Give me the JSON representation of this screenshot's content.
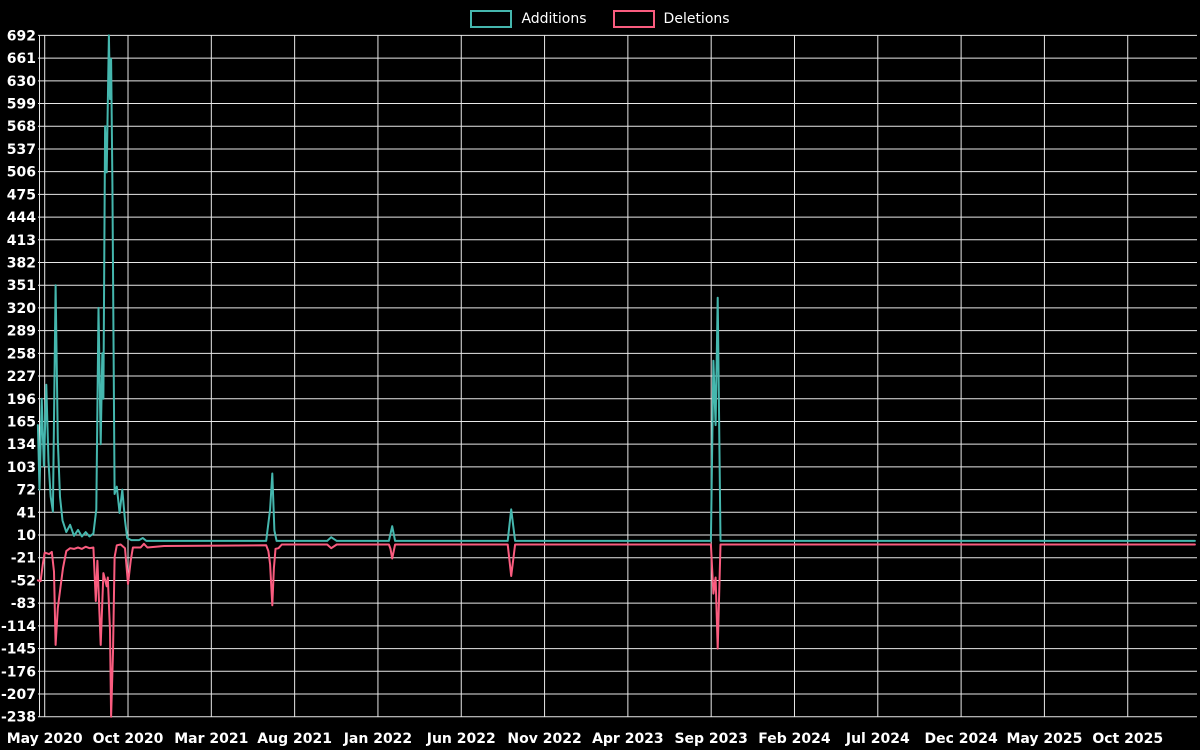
{
  "legend": {
    "items": [
      {
        "label": "Additions",
        "color": "#45b7ae"
      },
      {
        "label": "Deletions",
        "color": "#fa5c7f"
      }
    ]
  },
  "chart_data": {
    "type": "line",
    "title": "",
    "xlabel": "",
    "ylabel": "",
    "grid": true,
    "legend_position": "top-center",
    "ylim": [
      -238,
      692
    ],
    "y_ticks": [
      692,
      661,
      630,
      599,
      568,
      537,
      506,
      475,
      444,
      413,
      382,
      351,
      320,
      289,
      258,
      227,
      196,
      165,
      134,
      103,
      72,
      41,
      10,
      -21,
      -52,
      -83,
      -114,
      -145,
      -176,
      -207,
      -238
    ],
    "x_ticks": [
      "May 2020",
      "Oct 2020",
      "Mar 2021",
      "Aug 2021",
      "Jan 2022",
      "Jun 2022",
      "Nov 2022",
      "Apr 2023",
      "Sep 2023",
      "Feb 2024",
      "Jul 2024",
      "Dec 2024",
      "May 2025",
      "Oct 2025"
    ],
    "colors": {
      "background": "#000000",
      "gridline": "#e8e8e8",
      "text": "#ffffff",
      "additions": "#45b7ae",
      "deletions": "#fa5c7f"
    },
    "series": [
      {
        "name": "Additions",
        "color_key": "additions",
        "points": [
          [
            "2020-04-19",
            160
          ],
          [
            "2020-04-22",
            72
          ],
          [
            "2020-04-26",
            196
          ],
          [
            "2020-04-30",
            104
          ],
          [
            "2020-05-04",
            215
          ],
          [
            "2020-05-08",
            110
          ],
          [
            "2020-05-12",
            62
          ],
          [
            "2020-05-16",
            42
          ],
          [
            "2020-05-21",
            351
          ],
          [
            "2020-05-25",
            140
          ],
          [
            "2020-05-29",
            62
          ],
          [
            "2020-06-03",
            30
          ],
          [
            "2020-06-10",
            14
          ],
          [
            "2020-06-17",
            24
          ],
          [
            "2020-06-24",
            9
          ],
          [
            "2020-07-01",
            17
          ],
          [
            "2020-07-08",
            8
          ],
          [
            "2020-07-15",
            14
          ],
          [
            "2020-07-22",
            8
          ],
          [
            "2020-07-29",
            12
          ],
          [
            "2020-08-04",
            45
          ],
          [
            "2020-08-08",
            320
          ],
          [
            "2020-08-12",
            134
          ],
          [
            "2020-08-15",
            258
          ],
          [
            "2020-08-17",
            196
          ],
          [
            "2020-08-20",
            568
          ],
          [
            "2020-08-23",
            505
          ],
          [
            "2020-08-27",
            692
          ],
          [
            "2020-08-29",
            605
          ],
          [
            "2020-08-31",
            660
          ],
          [
            "2020-09-03",
            490
          ],
          [
            "2020-09-07",
            66
          ],
          [
            "2020-09-11",
            76
          ],
          [
            "2020-09-16",
            40
          ],
          [
            "2020-09-21",
            72
          ],
          [
            "2020-09-26",
            30
          ],
          [
            "2020-09-30",
            6
          ],
          [
            "2020-10-07",
            3
          ],
          [
            "2020-10-21",
            3
          ],
          [
            "2020-10-28",
            6
          ],
          [
            "2020-11-04",
            2
          ],
          [
            "2020-12-06",
            2
          ],
          [
            "2021-06-10",
            2
          ],
          [
            "2021-06-17",
            45
          ],
          [
            "2021-06-21",
            94
          ],
          [
            "2021-06-25",
            16
          ],
          [
            "2021-06-29",
            2
          ],
          [
            "2021-09-30",
            2
          ],
          [
            "2021-10-07",
            7
          ],
          [
            "2021-10-17",
            2
          ],
          [
            "2022-01-21",
            2
          ],
          [
            "2022-01-27",
            22
          ],
          [
            "2022-02-02",
            2
          ],
          [
            "2022-08-25",
            2
          ],
          [
            "2022-09-01",
            45
          ],
          [
            "2022-09-08",
            2
          ],
          [
            "2023-08-31",
            2
          ],
          [
            "2023-09-05",
            248
          ],
          [
            "2023-09-09",
            160
          ],
          [
            "2023-09-13",
            334
          ],
          [
            "2023-09-18",
            2
          ],
          [
            "2026-02-02",
            2
          ]
        ]
      },
      {
        "name": "Deletions",
        "color_key": "deletions",
        "points": [
          [
            "2020-04-19",
            -52
          ],
          [
            "2020-04-24",
            -53
          ],
          [
            "2020-04-28",
            -30
          ],
          [
            "2020-05-01",
            -14
          ],
          [
            "2020-05-09",
            -16
          ],
          [
            "2020-05-14",
            -13
          ],
          [
            "2020-05-18",
            -40
          ],
          [
            "2020-05-21",
            -140
          ],
          [
            "2020-05-25",
            -90
          ],
          [
            "2020-05-30",
            -60
          ],
          [
            "2020-06-04",
            -35
          ],
          [
            "2020-06-10",
            -12
          ],
          [
            "2020-06-17",
            -8
          ],
          [
            "2020-06-24",
            -9
          ],
          [
            "2020-07-01",
            -7
          ],
          [
            "2020-07-08",
            -9
          ],
          [
            "2020-07-15",
            -6
          ],
          [
            "2020-07-22",
            -8
          ],
          [
            "2020-07-29",
            -7
          ],
          [
            "2020-08-03",
            -80
          ],
          [
            "2020-08-06",
            -25
          ],
          [
            "2020-08-12",
            -140
          ],
          [
            "2020-08-17",
            -42
          ],
          [
            "2020-08-23",
            -60
          ],
          [
            "2020-08-25",
            -48
          ],
          [
            "2020-08-29",
            -120
          ],
          [
            "2020-08-31",
            -238
          ],
          [
            "2020-09-04",
            -150
          ],
          [
            "2020-09-07",
            -20
          ],
          [
            "2020-09-11",
            -4
          ],
          [
            "2020-09-18",
            -3
          ],
          [
            "2020-09-26",
            -8
          ],
          [
            "2020-10-01",
            -57
          ],
          [
            "2020-10-06",
            -25
          ],
          [
            "2020-10-10",
            -7
          ],
          [
            "2020-10-24",
            -7
          ],
          [
            "2020-10-30",
            -2
          ],
          [
            "2020-11-06",
            -7
          ],
          [
            "2020-12-06",
            -5
          ],
          [
            "2021-06-10",
            -4
          ],
          [
            "2021-06-14",
            -12
          ],
          [
            "2021-06-17",
            -30
          ],
          [
            "2021-06-21",
            -86
          ],
          [
            "2021-06-24",
            -35
          ],
          [
            "2021-06-27",
            -9
          ],
          [
            "2021-07-02",
            -8
          ],
          [
            "2021-07-08",
            -3
          ],
          [
            "2021-09-30",
            -3
          ],
          [
            "2021-10-07",
            -8
          ],
          [
            "2021-10-17",
            -3
          ],
          [
            "2022-01-21",
            -3
          ],
          [
            "2022-01-24",
            -9
          ],
          [
            "2022-01-27",
            -22
          ],
          [
            "2022-02-02",
            -3
          ],
          [
            "2022-08-25",
            -3
          ],
          [
            "2022-09-01",
            -46
          ],
          [
            "2022-09-08",
            -3
          ],
          [
            "2023-08-31",
            -3
          ],
          [
            "2023-09-05",
            -70
          ],
          [
            "2023-09-09",
            -48
          ],
          [
            "2023-09-13",
            -145
          ],
          [
            "2023-09-18",
            -3
          ],
          [
            "2026-02-02",
            -3
          ]
        ]
      }
    ]
  }
}
